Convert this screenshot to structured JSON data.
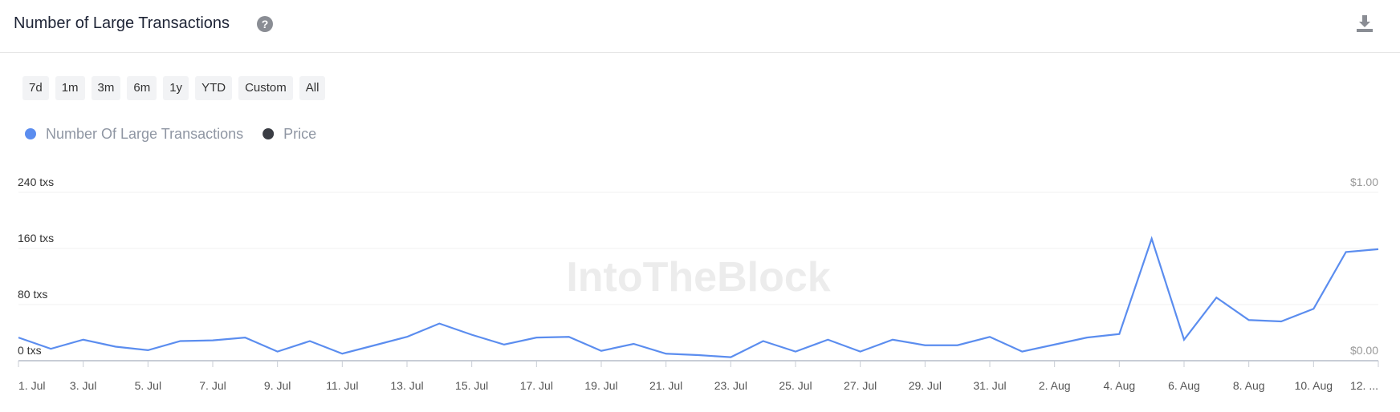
{
  "header": {
    "title": "Number of Large Transactions",
    "help": "?"
  },
  "ranges": [
    "7d",
    "1m",
    "3m",
    "6m",
    "1y",
    "YTD",
    "Custom",
    "All"
  ],
  "chart_data": {
    "type": "line",
    "watermark": "IntoTheBlock",
    "categories": [
      "1. Jul",
      null,
      "3. Jul",
      null,
      "5. Jul",
      null,
      "7. Jul",
      null,
      "9. Jul",
      null,
      "11. Jul",
      null,
      "13. Jul",
      null,
      "15. Jul",
      null,
      "17. Jul",
      null,
      "19. Jul",
      null,
      "21. Jul",
      null,
      "23. Jul",
      null,
      "25. Jul",
      null,
      "27. Jul",
      null,
      "29. Jul",
      null,
      "31. Jul",
      null,
      "2. Aug",
      null,
      "4. Aug",
      null,
      "6. Aug",
      null,
      "8. Aug",
      null,
      "10. Aug",
      null,
      "12. ..."
    ],
    "series": [
      {
        "name": "Number Of Large Transactions",
        "color": "#5b8def",
        "values": [
          33,
          17,
          30,
          20,
          15,
          28,
          29,
          33,
          13,
          28,
          10,
          22,
          34,
          53,
          37,
          23,
          33,
          34,
          14,
          24,
          10,
          8,
          5,
          28,
          13,
          30,
          13,
          30,
          22,
          22,
          34,
          13,
          23,
          33,
          38,
          174,
          30,
          90,
          58,
          56,
          74,
          155,
          159
        ]
      },
      {
        "name": "Price",
        "color": "#3a3d44",
        "axis": "y2",
        "values": [
          null,
          null,
          null,
          null,
          null,
          null,
          null,
          null,
          null,
          null,
          null,
          null,
          null,
          null,
          null,
          null,
          null,
          null,
          null,
          null,
          null,
          null,
          null,
          null,
          null,
          null,
          null,
          null,
          null,
          null,
          null,
          null,
          null,
          null,
          null,
          null,
          null,
          null,
          null,
          null,
          null,
          null,
          null
        ]
      }
    ],
    "ylim": [
      0,
      240
    ],
    "yticks": [
      {
        "value": 0,
        "label": "0 txs"
      },
      {
        "value": 80,
        "label": "80 txs"
      },
      {
        "value": 160,
        "label": "160 txs"
      },
      {
        "value": 240,
        "label": "240 txs"
      }
    ],
    "y2lim": [
      0,
      1
    ],
    "y2ticks": [
      {
        "value": 0,
        "label": "$0.00"
      },
      {
        "value": 1,
        "label": "$1.00"
      }
    ],
    "grid": true
  }
}
